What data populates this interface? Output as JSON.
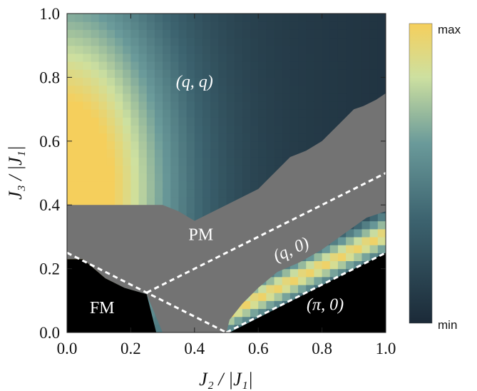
{
  "chart_data": {
    "type": "heatmap",
    "xlabel": "J₂ / |J₁|",
    "ylabel": "J₃ / |J₁|",
    "xlim": [
      0.0,
      1.0
    ],
    "ylim": [
      0.0,
      1.0
    ],
    "x_ticks": [
      "0.0",
      "0.2",
      "0.4",
      "0.6",
      "0.8",
      "1.0"
    ],
    "y_ticks": [
      "0.0",
      "0.2",
      "0.4",
      "0.6",
      "0.8",
      "1.0"
    ],
    "colorbar": {
      "max_label": "max",
      "min_label": "min",
      "colors": [
        "#1b2a38",
        "#3d6470",
        "#6a9a9a",
        "#cde0a0",
        "#f5cf5c"
      ]
    },
    "region_colors": {
      "PM": "#737373",
      "FM": "#000000",
      "pi0": "#000000"
    },
    "regions": [
      {
        "id": "qq",
        "label": "(q, q)",
        "at": [
          0.4,
          0.77
        ]
      },
      {
        "id": "pm",
        "label": "PM",
        "at": [
          0.42,
          0.29
        ]
      },
      {
        "id": "q0",
        "label": "(q, 0)",
        "at": [
          0.71,
          0.245
        ]
      },
      {
        "id": "fm",
        "label": "FM",
        "at": [
          0.11,
          0.06
        ]
      },
      {
        "id": "pi0",
        "label": "(π, 0)",
        "at": [
          0.81,
          0.07
        ]
      }
    ],
    "pm_boundary": [
      [
        0.0,
        0.4
      ],
      [
        0.0,
        0.23
      ],
      [
        0.05,
        0.23
      ],
      [
        0.12,
        0.17
      ],
      [
        0.18,
        0.14
      ],
      [
        0.25,
        0.12
      ],
      [
        0.3,
        0.0
      ],
      [
        0.5,
        0.0
      ],
      [
        0.51,
        0.04
      ],
      [
        0.55,
        0.09
      ],
      [
        0.6,
        0.14
      ],
      [
        0.66,
        0.19
      ],
      [
        0.73,
        0.22
      ],
      [
        0.8,
        0.26
      ],
      [
        0.87,
        0.31
      ],
      [
        0.94,
        0.36
      ],
      [
        1.0,
        0.38
      ],
      [
        1.0,
        0.75
      ],
      [
        0.97,
        0.73
      ],
      [
        0.93,
        0.71
      ],
      [
        0.9,
        0.7
      ],
      [
        0.85,
        0.65
      ],
      [
        0.8,
        0.6
      ],
      [
        0.75,
        0.57
      ],
      [
        0.7,
        0.55
      ],
      [
        0.65,
        0.5
      ],
      [
        0.6,
        0.45
      ],
      [
        0.5,
        0.4
      ],
      [
        0.4,
        0.35
      ],
      [
        0.35,
        0.38
      ],
      [
        0.3,
        0.4
      ],
      [
        0.0,
        0.4
      ]
    ],
    "fm_boundary": [
      [
        0.0,
        0.0
      ],
      [
        0.0,
        0.23
      ],
      [
        0.05,
        0.23
      ],
      [
        0.12,
        0.17
      ],
      [
        0.18,
        0.14
      ],
      [
        0.25,
        0.12
      ],
      [
        0.28,
        0.0
      ]
    ],
    "pi0_boundary": [
      [
        0.51,
        0.0
      ],
      [
        1.0,
        0.25
      ],
      [
        1.0,
        0.0
      ]
    ],
    "dashed_lines": [
      [
        [
          0.0,
          0.25
        ],
        [
          0.5,
          0.0
        ]
      ],
      [
        [
          0.25,
          0.125
        ],
        [
          1.0,
          0.5
        ]
      ],
      [
        [
          0.5,
          0.0
        ],
        [
          1.0,
          0.25
        ]
      ]
    ]
  }
}
